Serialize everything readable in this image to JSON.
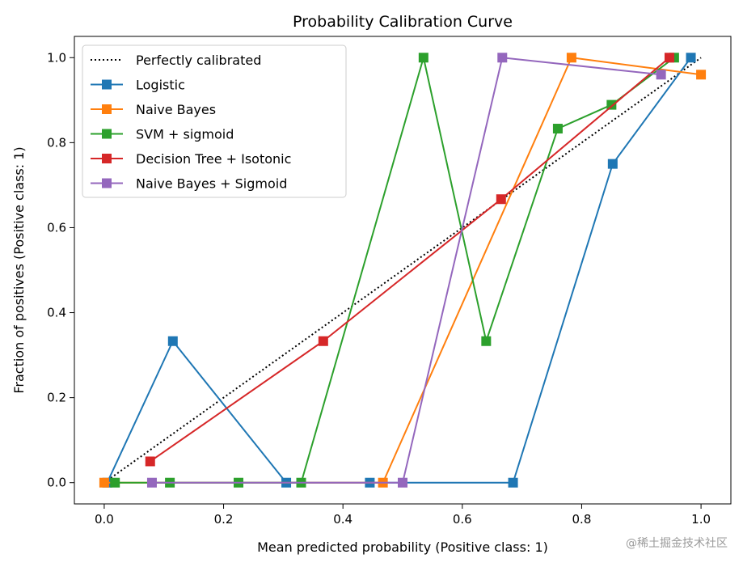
{
  "chart_data": {
    "type": "line",
    "title": "Probability Calibration Curve",
    "xlabel": "Mean predicted probability (Positive class: 1)",
    "ylabel": "Fraction of positives (Positive class: 1)",
    "xlim": [
      -0.05,
      1.05
    ],
    "ylim": [
      -0.05,
      1.05
    ],
    "xticks": [
      0.0,
      0.2,
      0.4,
      0.6,
      0.8,
      1.0
    ],
    "yticks": [
      0.0,
      0.2,
      0.4,
      0.6,
      0.8,
      1.0
    ],
    "xtick_labels": [
      "0.0",
      "0.2",
      "0.4",
      "0.6",
      "0.8",
      "1.0"
    ],
    "ytick_labels": [
      "0.0",
      "0.2",
      "0.4",
      "0.6",
      "0.8",
      "1.0"
    ],
    "grid": false,
    "legend_position": "top-left",
    "series": [
      {
        "name": "Perfectly calibrated",
        "color": "#000000",
        "style": "dotted",
        "marker": "none",
        "x": [
          0,
          1
        ],
        "y": [
          0,
          1
        ]
      },
      {
        "name": "Logistic",
        "color": "#1f77b4",
        "style": "solid",
        "marker": "square",
        "x": [
          0.005,
          0.115,
          0.305,
          0.445,
          0.685,
          0.852,
          0.983
        ],
        "y": [
          0.0,
          0.333,
          0.0,
          0.0,
          0.0,
          0.75,
          1.0
        ]
      },
      {
        "name": "Naive Bayes",
        "color": "#ff7f0e",
        "style": "solid",
        "marker": "square",
        "x": [
          0.0,
          0.467,
          0.783,
          1.0
        ],
        "y": [
          0.0,
          0.0,
          1.0,
          0.96
        ]
      },
      {
        "name": "SVM + sigmoid",
        "color": "#2ca02c",
        "style": "solid",
        "marker": "square",
        "x": [
          0.018,
          0.11,
          0.225,
          0.33,
          0.535,
          0.64,
          0.76,
          0.85,
          0.955
        ],
        "y": [
          0.0,
          0.0,
          0.0,
          0.0,
          1.0,
          0.333,
          0.833,
          0.889,
          1.0
        ]
      },
      {
        "name": "Decision Tree + Isotonic",
        "color": "#d62728",
        "style": "solid",
        "marker": "square",
        "x": [
          0.077,
          0.367,
          0.665,
          0.947
        ],
        "y": [
          0.05,
          0.333,
          0.667,
          1.0
        ]
      },
      {
        "name": "Naive Bayes + Sigmoid",
        "color": "#9467bd",
        "style": "solid",
        "marker": "square",
        "x": [
          0.08,
          0.5,
          0.667,
          0.933
        ],
        "y": [
          0.0,
          0.0,
          1.0,
          0.96
        ]
      }
    ]
  },
  "watermark": "@稀土掘金技术社区"
}
